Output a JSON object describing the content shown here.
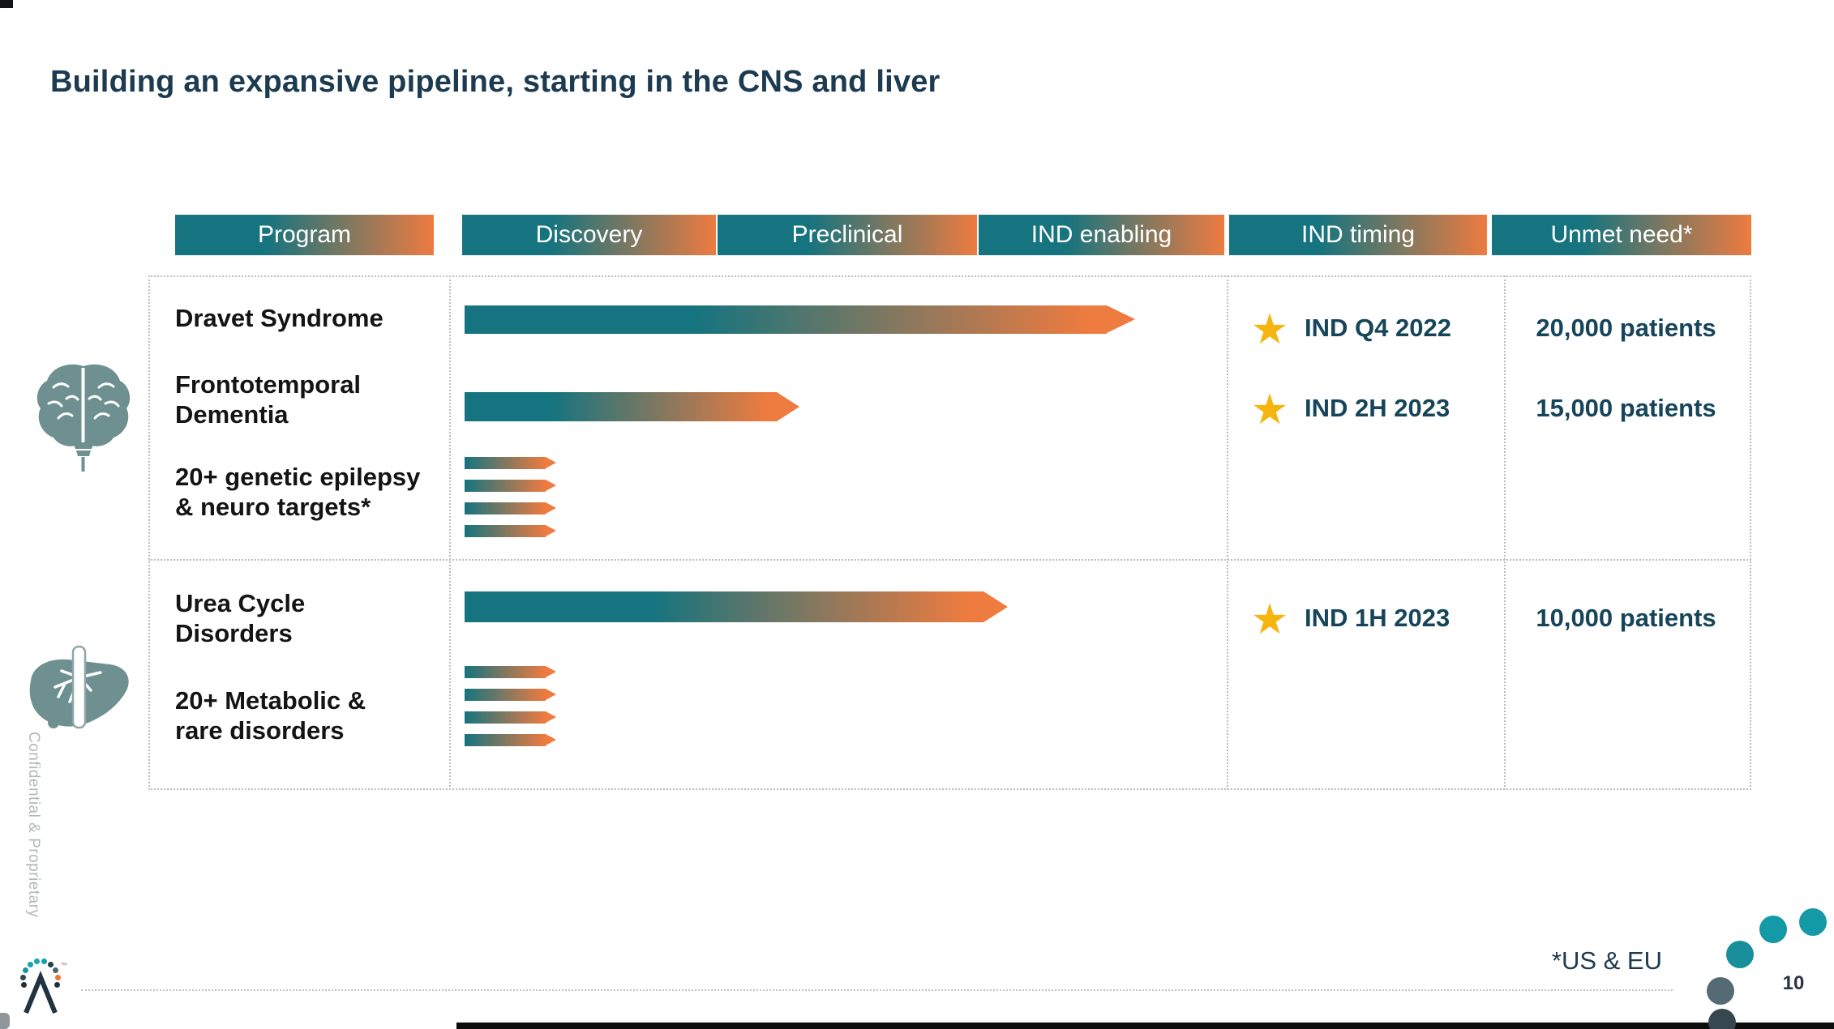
{
  "slide": {
    "title": "Building an expansive pipeline, starting in the CNS and liver",
    "watermark": "Confidential & Proprietary",
    "footnote": "*US & EU",
    "page_number": "10"
  },
  "pipeline_table": {
    "column_headers": [
      "Program",
      "Discovery",
      "Preclinical",
      "IND enabling",
      "IND timing",
      "Unmet need*"
    ],
    "groups": [
      {
        "icon": "brain-icon",
        "rows": [
          {
            "program": "Dravet Syndrome",
            "bar": "single-arrow",
            "stage_reached": "IND enabling",
            "ind_timing": "IND Q4 2022",
            "unmet_need": "20,000 patients"
          },
          {
            "program": "Frontotemporal\nDementia",
            "bar": "single-arrow",
            "stage_reached": "Preclinical",
            "ind_timing": "IND 2H 2023",
            "unmet_need": "15,000 patients"
          },
          {
            "program": "20+ genetic epilepsy\n& neuro targets*",
            "bar": "multi-arrow",
            "arrow_count": 4,
            "stage_reached": "Discovery"
          }
        ]
      },
      {
        "icon": "liver-icon",
        "rows": [
          {
            "program": "Urea Cycle\nDisorders",
            "bar": "single-arrow",
            "stage_reached": "IND enabling",
            "ind_timing": "IND 1H 2023",
            "unmet_need": "10,000 patients"
          },
          {
            "program": "20+ Metabolic &\nrare disorders",
            "bar": "multi-arrow",
            "arrow_count": 4,
            "stage_reached": "Discovery"
          }
        ]
      }
    ]
  },
  "colors": {
    "bar_teal": "#15747F",
    "bar_orange": "#EE7B40",
    "title_text": "#1C3A50",
    "detail_text": "#16455A",
    "star_gold": "#F6B40E",
    "organ_icon": "#6F9090",
    "watermark_gray": "#B2B8BC"
  },
  "decor": {
    "footer_dots": [
      "#1499A6",
      "#1499A6",
      "#188F9B",
      "#546A74",
      "#37474F"
    ],
    "logo_dots": [
      "#22303A",
      "#2A4A57",
      "#1397A4",
      "#16A3AE",
      "#17A5B0",
      "#14A0AC",
      "#24404C",
      "#4F6570",
      "#E87A2B",
      "#22303A"
    ]
  }
}
